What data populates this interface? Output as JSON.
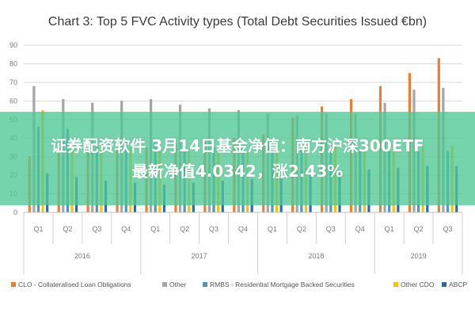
{
  "overlay": {
    "line1": "证券配资软件 3月14日基金净值：南方沪深300ETF",
    "line2": "最新净值4.0342，涨2.43%",
    "color": "#3cc38c"
  },
  "chart_data": {
    "type": "bar",
    "title": "Chart 3: Top 5 FVC Activity types (Total Debt Securities Issued €bn)",
    "ylim": [
      0,
      90
    ],
    "yticks": [
      0,
      10,
      20,
      30,
      40,
      50,
      60,
      70,
      80,
      90
    ],
    "grid": true,
    "legend_position": "bottom",
    "categories": [
      "Q1",
      "Q2",
      "Q3",
      "Q4",
      "Q1",
      "Q2",
      "Q3",
      "Q4",
      "Q1",
      "Q2",
      "Q3",
      "Q4",
      "Q1",
      "Q2",
      "Q3"
    ],
    "years": [
      {
        "label": "2016",
        "start": 0,
        "end": 3
      },
      {
        "label": "2017",
        "start": 4,
        "end": 7
      },
      {
        "label": "2018",
        "start": 8,
        "end": 11
      },
      {
        "label": "2019",
        "start": 12,
        "end": 14
      }
    ],
    "series": [
      {
        "name": "CLO - Collateralised Loan Obligations",
        "color": "#ed7d31",
        "values": [
          30,
          32,
          33,
          34,
          35,
          37,
          38,
          40,
          42,
          51,
          57,
          61,
          68,
          75,
          83
        ]
      },
      {
        "name": "Other",
        "color": "#a5a5a5",
        "values": [
          68,
          61,
          59,
          60,
          61,
          58,
          56,
          55,
          53,
          52,
          53,
          53,
          59,
          66,
          67
        ]
      },
      {
        "name": "RMBS - Residential Mortgage Backed Securities",
        "color": "#4f97b8",
        "values": [
          46,
          45,
          40,
          39,
          37,
          36,
          35,
          35,
          34,
          34,
          33,
          33,
          33,
          33,
          33
        ]
      },
      {
        "name": "Other CDO",
        "color": "#ffc000",
        "values": [
          55,
          37,
          36,
          35,
          33,
          33,
          33,
          33,
          36,
          36,
          36,
          36,
          36,
          36,
          36
        ]
      },
      {
        "name": "ABCP",
        "color": "#2f67b0",
        "values": [
          21,
          19,
          17,
          16,
          15,
          16,
          17,
          18,
          19,
          20,
          21,
          23,
          24,
          25,
          25
        ]
      }
    ]
  }
}
